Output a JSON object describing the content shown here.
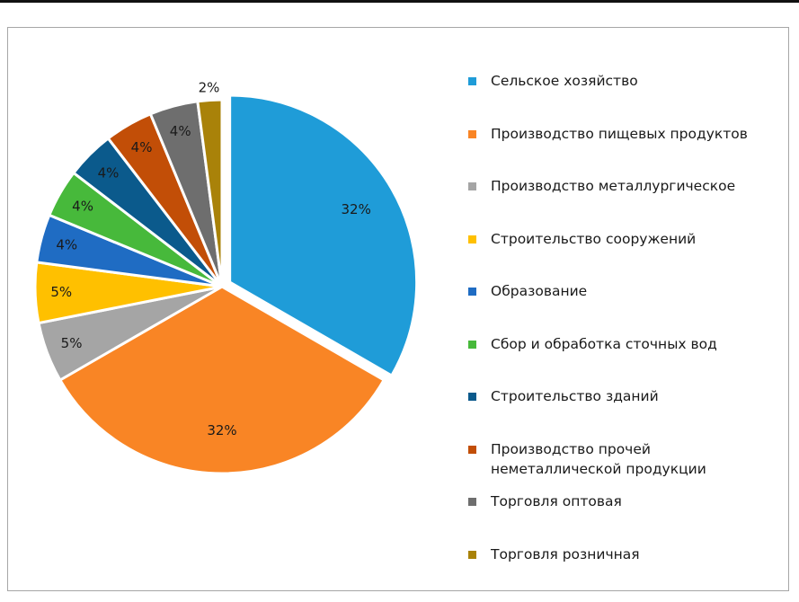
{
  "chart_data": {
    "type": "pie",
    "categories": [
      "Сельское хозяйство",
      "Производство пищевых продуктов",
      "Производство металлургическое",
      "Строительство сооружений",
      "Образование",
      "Сбор и обработка сточных вод",
      "Строительство зданий",
      "Производство прочей\nнеметаллической продукции",
      "Торговля оптовая",
      "Торговля розничная"
    ],
    "values": [
      32,
      32,
      5,
      5,
      4,
      4,
      4,
      4,
      4,
      2
    ],
    "data_labels": [
      "32%",
      "32%",
      "5%",
      "5%",
      "4%",
      "4%",
      "4%",
      "4%",
      "4%",
      "2%"
    ],
    "colors": [
      "#1F9CD8",
      "#F98525",
      "#A5A5A5",
      "#FFC000",
      "#1F6CC3",
      "#47B93B",
      "#0B5A8C",
      "#C24E07",
      "#6E6E6E",
      "#A98209"
    ],
    "legend_position": "right",
    "exploded_slice": "Сельское хозяйство"
  }
}
